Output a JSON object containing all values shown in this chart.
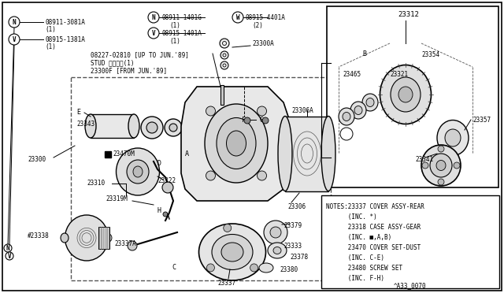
{
  "bg_color": "#ffffff",
  "border_color": "#000000",
  "text_color": "#000000",
  "notes_lines": [
    "NOTES:23337 COVER ASSY-REAR",
    "      (INC. *)",
    "      23318 CASE ASSY-GEAR",
    "      (INC. ■,A,B)",
    "      23470 COVER SET-DUST",
    "      (INC. C-E)",
    "      23480 SCREW SET",
    "      (INC. F-H)"
  ],
  "footer": "^A33_0070"
}
